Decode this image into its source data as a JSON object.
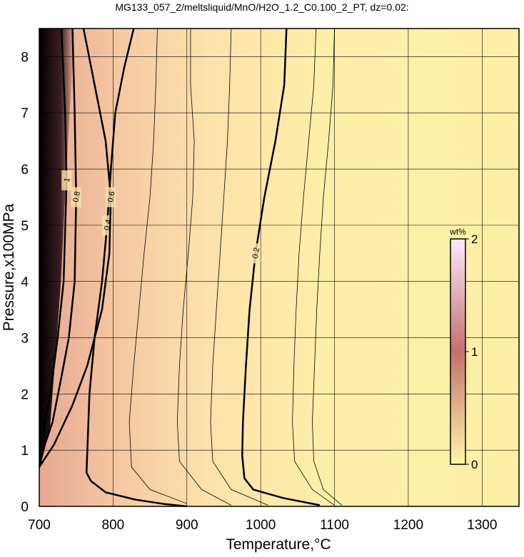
{
  "chart_data": {
    "type": "contour",
    "title": "MG133_057_2/meltsliquid/MnO/H2O_1.2_C0.100_2_PT, dz=0.02:",
    "xlabel": "Temperature,°C",
    "ylabel": "Pressure,x100MPa",
    "xlim": [
      700,
      1350
    ],
    "ylim": [
      0,
      8.5
    ],
    "xticks": [
      700,
      800,
      900,
      1000,
      1100,
      1200,
      1300
    ],
    "yticks": [
      0,
      1,
      2,
      3,
      4,
      5,
      6,
      7,
      8
    ],
    "grid": true,
    "labeled_levels": [
      0.2,
      0.4,
      0.6,
      0.8,
      1
    ],
    "contours": [
      {
        "level": 0.2,
        "x": [
          1035,
          1032,
          1020,
          1005,
          993,
          985,
          980,
          976,
          975,
          978,
          990,
          1030,
          1080
        ],
        "y": [
          8.5,
          7.5,
          6.5,
          5.5,
          4.5,
          3.5,
          2.5,
          1.5,
          0.9,
          0.5,
          0.3,
          0.15,
          0.02
        ]
      },
      {
        "level": 0.4,
        "x": [
          828,
          815,
          803,
          797,
          792,
          785,
          775,
          768,
          764,
          770,
          790,
          830,
          870,
          900
        ],
        "y": [
          8.5,
          7.8,
          7,
          6,
          5,
          4,
          3,
          2,
          0.6,
          0.45,
          0.25,
          0.12,
          0.04,
          0
        ]
      },
      {
        "level": 0.6,
        "x": [
          760,
          775,
          790,
          797,
          795,
          785,
          765,
          745,
          720,
          700
        ],
        "y": [
          8.5,
          7.5,
          6.5,
          5.5,
          4.5,
          3.5,
          2.5,
          1.8,
          1.1,
          0.7
        ]
      },
      {
        "level": 0.8,
        "x": [
          745,
          748,
          750,
          748,
          740,
          730,
          718,
          705
        ],
        "y": [
          8.5,
          7,
          5.5,
          4,
          3,
          2.3,
          1.5,
          1
        ]
      },
      {
        "level": 1,
        "x": [
          730,
          735,
          737,
          733,
          725,
          715,
          705
        ],
        "y": [
          8.5,
          7,
          5.8,
          4,
          3,
          2,
          1.3
        ]
      },
      {
        "level": 0.35,
        "x": [
          860,
          858,
          855,
          850,
          842,
          835,
          828,
          822,
          825,
          850,
          900
        ],
        "y": [
          8.5,
          7.5,
          6.5,
          5.5,
          4.5,
          3.5,
          2.5,
          1.5,
          0.7,
          0.3,
          0.05
        ]
      },
      {
        "level": 0.3,
        "x": [
          905,
          905,
          910,
          908,
          902,
          895,
          890,
          887,
          890,
          920,
          960
        ],
        "y": [
          8.5,
          7.5,
          6.5,
          5.5,
          4.5,
          3.5,
          2.5,
          1.5,
          0.8,
          0.3,
          0.02
        ]
      },
      {
        "level": 0.25,
        "x": [
          960,
          958,
          955,
          950,
          945,
          940,
          935,
          932,
          935,
          960,
          1010
        ],
        "y": [
          8.5,
          7.5,
          6.5,
          5.5,
          4.5,
          3.5,
          2.5,
          1.5,
          0.8,
          0.3,
          0.02
        ]
      },
      {
        "level": 0.18,
        "x": [
          1075,
          1072,
          1065,
          1058,
          1052,
          1048,
          1045,
          1043,
          1046,
          1070,
          1100
        ],
        "y": [
          8.5,
          7.5,
          6.5,
          5.5,
          4.5,
          3.5,
          2.5,
          1.5,
          0.8,
          0.3,
          0.02
        ]
      },
      {
        "level": 0.16,
        "x": [
          1100,
          1098,
          1092,
          1085,
          1080,
          1076,
          1073,
          1070,
          1072,
          1085,
          1110
        ],
        "y": [
          8.5,
          7.5,
          6.5,
          5.5,
          4.5,
          3.5,
          2.5,
          1.5,
          0.8,
          0.3,
          0.02
        ]
      }
    ],
    "colorbar": {
      "label": "wt%",
      "lim": [
        0,
        2
      ],
      "ticks": [
        0,
        1,
        2
      ],
      "colors": [
        "#fff7a8",
        "#c47070",
        "#fde8ff"
      ]
    }
  }
}
